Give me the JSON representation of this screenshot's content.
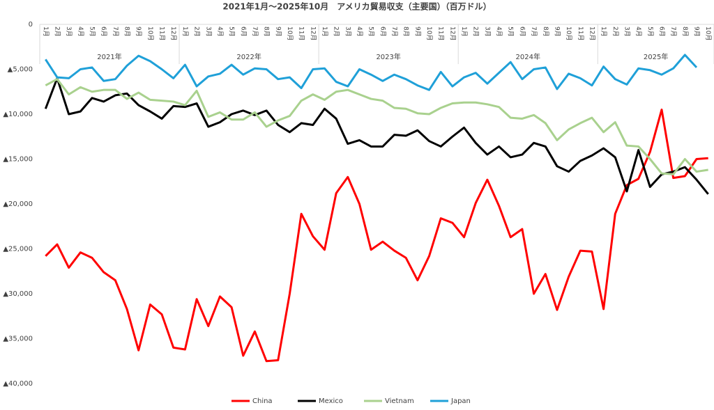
{
  "chart_data": {
    "type": "line",
    "title": "2021年1月～2025年10月　アメリカ貿易収支（主要国）（百万ドル）",
    "categories": [
      "1月",
      "2月",
      "3月",
      "4月",
      "5月",
      "6月",
      "7月",
      "8月",
      "9月",
      "10月",
      "11月",
      "12月",
      "1月",
      "2月",
      "3月",
      "4月",
      "5月",
      "6月",
      "7月",
      "8月",
      "9月",
      "10月",
      "11月",
      "12月",
      "1月",
      "2月",
      "3月",
      "4月",
      "5月",
      "6月",
      "7月",
      "8月",
      "9月",
      "10月",
      "11月",
      "12月",
      "1月",
      "2月",
      "3月",
      "4月",
      "5月",
      "6月",
      "7月",
      "8月",
      "9月",
      "10月",
      "11月",
      "12月",
      "1月",
      "2月",
      "3月",
      "4月",
      "5月",
      "6月",
      "7月",
      "8月",
      "9月",
      "10月"
    ],
    "category_groups": [
      "2021年",
      "2022年",
      "2023年",
      "2024年",
      "2025年"
    ],
    "ylim": [
      0,
      -40000
    ],
    "yticks": [
      0,
      {
        "value": -5000,
        "label": "▲5,000"
      },
      {
        "value": -10000,
        "label": "▲10,000"
      },
      {
        "value": -15000,
        "label": "▲15,000"
      },
      {
        "value": -20000,
        "label": "▲20,000"
      },
      {
        "value": -25000,
        "label": "▲25,000"
      },
      {
        "value": -30000,
        "label": "▲30,000"
      },
      {
        "value": -35000,
        "label": "▲35,000"
      },
      {
        "value": -40000,
        "label": "▲40,000"
      }
    ],
    "grid": false,
    "legend": "bottom",
    "series": [
      {
        "name": "China",
        "color": "#ff0000",
        "values": [
          -25800,
          -24500,
          -27100,
          -25400,
          -26000,
          -27600,
          -28500,
          -31700,
          -36300,
          -31200,
          -32300,
          -36000,
          -36200,
          -30600,
          -33600,
          -30300,
          -31500,
          -36900,
          -34200,
          -37500,
          -37400,
          -30000,
          -21100,
          -23600,
          -25100,
          -18800,
          -17000,
          -20000,
          -25100,
          -24200,
          -25200,
          -26000,
          -28500,
          -25800,
          -21600,
          -22100,
          -23700,
          -19900,
          -17300,
          -20200,
          -23700,
          -22800,
          -30000,
          -27800,
          -31800,
          -28100,
          -25200,
          -25300,
          -31700,
          -21100,
          -17900,
          -17200,
          -14200,
          -9500,
          -17100,
          -16900,
          -15000,
          -14900
        ]
      },
      {
        "name": "Mexico",
        "color": "#000000",
        "values": [
          -9400,
          -6000,
          -10000,
          -9700,
          -8200,
          -8600,
          -7900,
          -7700,
          -9000,
          -9700,
          -10500,
          -9100,
          -9200,
          -8800,
          -11400,
          -10900,
          -10000,
          -9600,
          -10100,
          -9600,
          -11200,
          -12000,
          -11000,
          -11200,
          -9400,
          -10500,
          -13300,
          -12900,
          -13600,
          -13600,
          -12300,
          -12400,
          -11800,
          -13000,
          -13600,
          -12500,
          -11500,
          -13200,
          -14500,
          -13600,
          -14800,
          -14500,
          -13200,
          -13600,
          -15800,
          -16400,
          -15200,
          -14600,
          -13800,
          -14800,
          -18600,
          -14000,
          -18100,
          -16700,
          -16400,
          -15900,
          -17300,
          -18900
        ]
      },
      {
        "name": "Vietnam",
        "color": "#a9d18e",
        "values": [
          -6800,
          -6100,
          -7800,
          -7000,
          -7500,
          -7300,
          -7300,
          -8300,
          -7600,
          -8400,
          -8500,
          -8600,
          -9000,
          -7400,
          -10300,
          -9800,
          -10600,
          -10600,
          -9800,
          -11400,
          -10700,
          -10200,
          -8500,
          -7800,
          -8400,
          -7500,
          -7300,
          -7800,
          -8300,
          -8500,
          -9300,
          -9400,
          -9900,
          -10000,
          -9300,
          -8800,
          -8700,
          -8700,
          -8900,
          -9200,
          -10400,
          -10500,
          -10100,
          -11000,
          -12900,
          -11700,
          -11000,
          -10400,
          -12000,
          -10900,
          -13500,
          -13600,
          -15000,
          -16600,
          -16700,
          -15000,
          -16400,
          -16200
        ]
      },
      {
        "name": "Japan",
        "color": "#1fa0d8",
        "values": [
          -3900,
          -5900,
          -6000,
          -5000,
          -4800,
          -6300,
          -6100,
          -4600,
          -3500,
          -4100,
          -5000,
          -6000,
          -4500,
          -6900,
          -5800,
          -5500,
          -4500,
          -5600,
          -4900,
          -5000,
          -6100,
          -5900,
          -7100,
          -5000,
          -4900,
          -6400,
          -6900,
          -5000,
          -5600,
          -6300,
          -5600,
          -6100,
          -6800,
          -7300,
          -5300,
          -6900,
          -5900,
          -5400,
          -6600,
          -5400,
          -4200,
          -6100,
          -5000,
          -4800,
          -7200,
          -5500,
          -6000,
          -6800,
          -4700,
          -6100,
          -6700,
          -4900,
          -5100,
          -5600,
          -4900,
          -3400,
          -4800,
          null
        ]
      }
    ]
  }
}
